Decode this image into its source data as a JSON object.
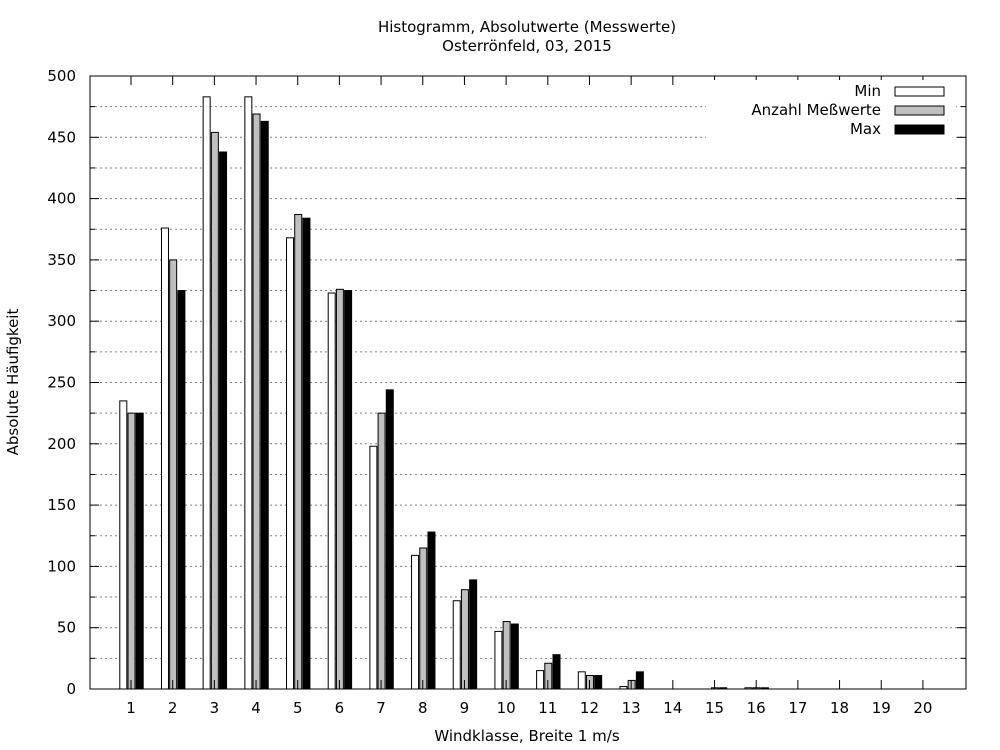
{
  "chart_data": {
    "type": "bar",
    "title": "Histogramm, Absolutwerte (Messwerte)",
    "subtitle": "Osterrönfeld, 03, 2015",
    "xlabel": "Windklasse, Breite 1 m/s",
    "ylabel": "Absolute Häufigkeit",
    "ylim": [
      0,
      500
    ],
    "yticks": [
      "0",
      "50",
      "100",
      "150",
      "200",
      "250",
      "300",
      "350",
      "400",
      "450",
      "500"
    ],
    "grid": true,
    "legend_position": "top-right",
    "categories": [
      "1",
      "2",
      "3",
      "4",
      "5",
      "6",
      "7",
      "8",
      "9",
      "10",
      "11",
      "12",
      "13",
      "14",
      "15",
      "16",
      "17",
      "18",
      "19",
      "20"
    ],
    "series": [
      {
        "name": "Min",
        "color": "#ffffff",
        "values": [
          235,
          376,
          483,
          483,
          368,
          323,
          198,
          109,
          72,
          47,
          15,
          14,
          2,
          0,
          0,
          1,
          0,
          0,
          0,
          0
        ]
      },
      {
        "name": "Anzahl Meßwerte",
        "color": "#c0c0c0",
        "values": [
          225,
          350,
          454,
          469,
          387,
          326,
          225,
          115,
          81,
          55,
          21,
          11,
          7,
          0,
          1,
          1,
          0,
          0,
          0,
          0
        ]
      },
      {
        "name": "Max",
        "color": "#000000",
        "values": [
          225,
          325,
          438,
          463,
          384,
          325,
          244,
          128,
          89,
          53,
          28,
          11,
          14,
          0,
          1,
          1,
          0,
          0,
          0,
          0
        ]
      }
    ]
  }
}
